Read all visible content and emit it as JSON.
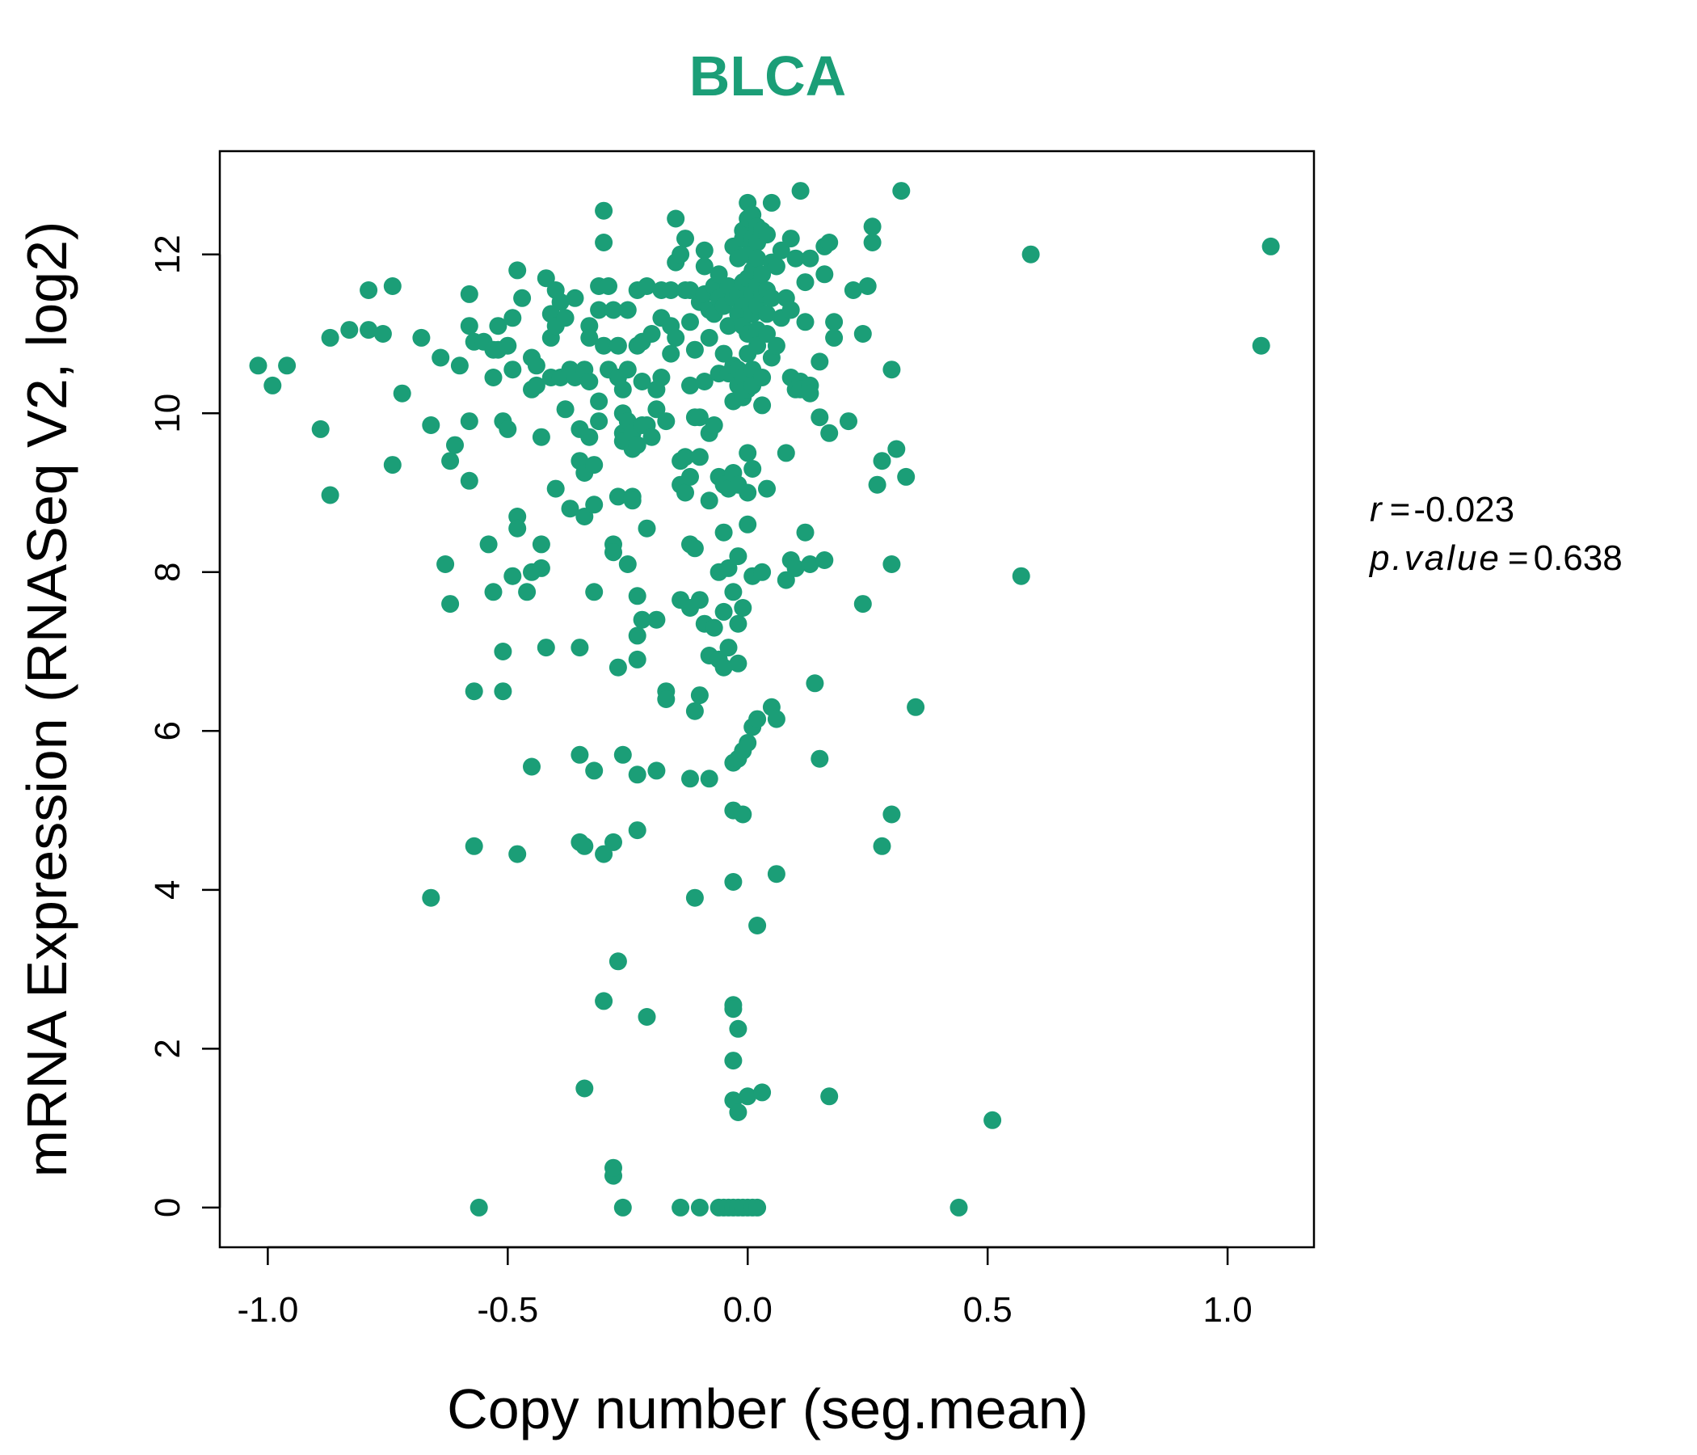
{
  "colors": {
    "accent": "#1B9E77",
    "axis": "#000000",
    "background": "#FFFFFF"
  },
  "chart_data": {
    "type": "scatter",
    "title": "BLCA",
    "xlabel": "Copy number (seg.mean)",
    "ylabel": "mRNA Expression (RNASeq V2, log2)",
    "xlim": [
      -1.1,
      1.18
    ],
    "ylim": [
      -0.5,
      13.3
    ],
    "x_ticks": [
      -1.0,
      -0.5,
      0.0,
      0.5,
      1.0
    ],
    "x_tick_labels": [
      "-1.0",
      "-0.5",
      "0.0",
      "0.5",
      "1.0"
    ],
    "y_ticks": [
      0,
      2,
      4,
      6,
      8,
      10,
      12
    ],
    "y_tick_labels": [
      "0",
      "2",
      "4",
      "6",
      "8",
      "10",
      "12"
    ],
    "grid": false,
    "legend": "none",
    "stats": {
      "r_label": "r",
      "r_value": "-0.023",
      "p_label": "p.value",
      "p_value": "0.638",
      "equals": "="
    },
    "points": [
      [
        -1.02,
        10.6
      ],
      [
        -0.99,
        10.35
      ],
      [
        -0.96,
        10.6
      ],
      [
        -0.89,
        9.8
      ],
      [
        -0.87,
        8.97
      ],
      [
        -0.87,
        10.95
      ],
      [
        -0.83,
        11.05
      ],
      [
        -0.79,
        11.55
      ],
      [
        -0.79,
        11.05
      ],
      [
        -0.76,
        11.0
      ],
      [
        -0.74,
        11.6
      ],
      [
        -0.74,
        9.35
      ],
      [
        -0.72,
        10.25
      ],
      [
        -0.68,
        10.95
      ],
      [
        -0.66,
        9.85
      ],
      [
        -0.66,
        3.9
      ],
      [
        -0.64,
        10.7
      ],
      [
        -0.63,
        8.1
      ],
      [
        -0.62,
        7.6
      ],
      [
        -0.62,
        9.4
      ],
      [
        -0.61,
        9.6
      ],
      [
        -0.6,
        10.6
      ],
      [
        -0.58,
        11.5
      ],
      [
        -0.58,
        11.1
      ],
      [
        -0.58,
        9.9
      ],
      [
        -0.58,
        9.15
      ],
      [
        -0.57,
        10.9
      ],
      [
        -0.57,
        6.5
      ],
      [
        -0.57,
        4.55
      ],
      [
        -0.56,
        0.0
      ],
      [
        -0.55,
        10.9
      ],
      [
        -0.54,
        8.35
      ],
      [
        -0.53,
        10.8
      ],
      [
        -0.53,
        10.45
      ],
      [
        -0.53,
        7.75
      ],
      [
        -0.52,
        11.1
      ],
      [
        -0.52,
        10.8
      ],
      [
        -0.51,
        9.9
      ],
      [
        -0.51,
        7.0
      ],
      [
        -0.51,
        6.5
      ],
      [
        -0.5,
        9.8
      ],
      [
        -0.5,
        10.85
      ],
      [
        -0.49,
        10.55
      ],
      [
        -0.49,
        11.2
      ],
      [
        -0.49,
        7.95
      ],
      [
        -0.48,
        11.8
      ],
      [
        -0.48,
        8.7
      ],
      [
        -0.48,
        8.55
      ],
      [
        -0.48,
        4.45
      ],
      [
        -0.47,
        11.45
      ],
      [
        -0.46,
        7.75
      ],
      [
        -0.45,
        10.7
      ],
      [
        -0.45,
        10.3
      ],
      [
        -0.45,
        8.0
      ],
      [
        -0.45,
        5.55
      ],
      [
        -0.44,
        10.6
      ],
      [
        -0.44,
        10.35
      ],
      [
        -0.43,
        9.7
      ],
      [
        -0.43,
        8.35
      ],
      [
        -0.43,
        8.05
      ],
      [
        -0.42,
        11.7
      ],
      [
        -0.42,
        7.05
      ],
      [
        -0.41,
        11.25
      ],
      [
        -0.41,
        10.95
      ],
      [
        -0.41,
        10.45
      ],
      [
        -0.4,
        11.55
      ],
      [
        -0.4,
        11.1
      ],
      [
        -0.4,
        9.05
      ],
      [
        -0.39,
        11.4
      ],
      [
        -0.39,
        10.45
      ],
      [
        -0.38,
        11.2
      ],
      [
        -0.38,
        10.05
      ],
      [
        -0.37,
        10.55
      ],
      [
        -0.37,
        8.8
      ],
      [
        -0.36,
        10.45
      ],
      [
        -0.36,
        11.45
      ],
      [
        -0.35,
        9.8
      ],
      [
        -0.35,
        9.4
      ],
      [
        -0.35,
        7.05
      ],
      [
        -0.35,
        5.7
      ],
      [
        -0.35,
        4.6
      ],
      [
        -0.34,
        10.55
      ],
      [
        -0.34,
        9.25
      ],
      [
        -0.34,
        8.7
      ],
      [
        -0.34,
        4.55
      ],
      [
        -0.34,
        1.5
      ],
      [
        -0.33,
        11.1
      ],
      [
        -0.33,
        10.95
      ],
      [
        -0.33,
        10.4
      ],
      [
        -0.33,
        9.7
      ],
      [
        -0.32,
        9.35
      ],
      [
        -0.32,
        8.85
      ],
      [
        -0.32,
        7.75
      ],
      [
        -0.32,
        5.5
      ],
      [
        -0.31,
        11.6
      ],
      [
        -0.31,
        11.3
      ],
      [
        -0.31,
        10.15
      ],
      [
        -0.31,
        9.9
      ],
      [
        -0.3,
        12.55
      ],
      [
        -0.3,
        12.15
      ],
      [
        -0.3,
        10.85
      ],
      [
        -0.3,
        4.45
      ],
      [
        -0.3,
        2.6
      ],
      [
        -0.29,
        11.6
      ],
      [
        -0.29,
        10.55
      ],
      [
        -0.28,
        11.3
      ],
      [
        -0.28,
        8.35
      ],
      [
        -0.28,
        8.25
      ],
      [
        -0.28,
        4.6
      ],
      [
        -0.28,
        0.4
      ],
      [
        -0.28,
        0.5
      ],
      [
        -0.27,
        10.85
      ],
      [
        -0.27,
        10.45
      ],
      [
        -0.27,
        8.95
      ],
      [
        -0.27,
        6.8
      ],
      [
        -0.27,
        3.1
      ],
      [
        -0.26,
        10.3
      ],
      [
        -0.26,
        10.0
      ],
      [
        -0.26,
        9.75
      ],
      [
        -0.26,
        9.65
      ],
      [
        -0.26,
        5.7
      ],
      [
        -0.26,
        0.0
      ],
      [
        -0.25,
        11.3
      ],
      [
        -0.25,
        10.55
      ],
      [
        -0.25,
        9.9
      ],
      [
        -0.25,
        8.1
      ],
      [
        -0.24,
        9.75
      ],
      [
        -0.24,
        9.55
      ],
      [
        -0.24,
        8.95
      ],
      [
        -0.24,
        8.9
      ],
      [
        -0.23,
        11.55
      ],
      [
        -0.23,
        10.85
      ],
      [
        -0.23,
        9.6
      ],
      [
        -0.23,
        7.7
      ],
      [
        -0.23,
        7.2
      ],
      [
        -0.23,
        6.9
      ],
      [
        -0.23,
        5.45
      ],
      [
        -0.23,
        4.75
      ],
      [
        -0.22,
        10.9
      ],
      [
        -0.22,
        10.4
      ],
      [
        -0.22,
        9.85
      ],
      [
        -0.22,
        7.4
      ],
      [
        -0.21,
        11.6
      ],
      [
        -0.21,
        9.85
      ],
      [
        -0.21,
        8.55
      ],
      [
        -0.21,
        2.4
      ],
      [
        -0.2,
        11.0
      ],
      [
        -0.2,
        9.7
      ],
      [
        -0.19,
        10.3
      ],
      [
        -0.19,
        10.05
      ],
      [
        -0.19,
        7.4
      ],
      [
        -0.19,
        5.5
      ],
      [
        -0.18,
        11.55
      ],
      [
        -0.18,
        11.2
      ],
      [
        -0.18,
        10.45
      ],
      [
        -0.17,
        9.9
      ],
      [
        -0.17,
        6.5
      ],
      [
        -0.17,
        6.4
      ],
      [
        -0.16,
        11.55
      ],
      [
        -0.16,
        11.1
      ],
      [
        -0.16,
        10.75
      ],
      [
        -0.15,
        12.45
      ],
      [
        -0.15,
        11.9
      ],
      [
        -0.15,
        10.95
      ],
      [
        -0.14,
        12.0
      ],
      [
        -0.14,
        9.4
      ],
      [
        -0.14,
        9.1
      ],
      [
        -0.14,
        7.65
      ],
      [
        -0.14,
        0.0
      ],
      [
        -0.13,
        12.2
      ],
      [
        -0.13,
        11.55
      ],
      [
        -0.13,
        9.45
      ],
      [
        -0.13,
        9.0
      ],
      [
        -0.12,
        11.55
      ],
      [
        -0.12,
        11.15
      ],
      [
        -0.12,
        10.35
      ],
      [
        -0.12,
        9.2
      ],
      [
        -0.12,
        8.35
      ],
      [
        -0.12,
        7.55
      ],
      [
        -0.12,
        5.4
      ],
      [
        -0.11,
        10.8
      ],
      [
        -0.11,
        9.95
      ],
      [
        -0.11,
        8.3
      ],
      [
        -0.11,
        6.25
      ],
      [
        -0.11,
        3.9
      ],
      [
        -0.1,
        11.4
      ],
      [
        -0.1,
        9.95
      ],
      [
        -0.1,
        9.45
      ],
      [
        -0.1,
        7.65
      ],
      [
        -0.1,
        6.45
      ],
      [
        -0.1,
        0.0
      ],
      [
        -0.09,
        12.05
      ],
      [
        -0.09,
        11.85
      ],
      [
        -0.09,
        11.5
      ],
      [
        -0.09,
        10.4
      ],
      [
        -0.09,
        7.35
      ],
      [
        -0.08,
        11.3
      ],
      [
        -0.08,
        10.95
      ],
      [
        -0.08,
        9.75
      ],
      [
        -0.08,
        8.9
      ],
      [
        -0.08,
        6.95
      ],
      [
        -0.08,
        5.4
      ],
      [
        -0.07,
        11.6
      ],
      [
        -0.07,
        11.25
      ],
      [
        -0.07,
        9.85
      ],
      [
        -0.07,
        7.3
      ],
      [
        -0.06,
        11.75
      ],
      [
        -0.06,
        11.45
      ],
      [
        -0.06,
        10.5
      ],
      [
        -0.06,
        9.2
      ],
      [
        -0.06,
        8.0
      ],
      [
        -0.06,
        6.9
      ],
      [
        -0.06,
        0.0
      ],
      [
        -0.05,
        11.35
      ],
      [
        -0.05,
        10.75
      ],
      [
        -0.05,
        9.1
      ],
      [
        -0.05,
        8.5
      ],
      [
        -0.05,
        7.5
      ],
      [
        -0.05,
        6.8
      ],
      [
        -0.05,
        0.0
      ],
      [
        -0.04,
        11.6
      ],
      [
        -0.04,
        11.1
      ],
      [
        -0.04,
        10.5
      ],
      [
        -0.04,
        9.05
      ],
      [
        -0.04,
        8.05
      ],
      [
        -0.04,
        7.05
      ],
      [
        -0.04,
        0.0
      ],
      [
        -0.03,
        12.1
      ],
      [
        -0.03,
        11.45
      ],
      [
        -0.03,
        10.6
      ],
      [
        -0.03,
        10.15
      ],
      [
        -0.03,
        9.25
      ],
      [
        -0.03,
        7.75
      ],
      [
        -0.03,
        5.6
      ],
      [
        -0.03,
        5.0
      ],
      [
        -0.03,
        4.1
      ],
      [
        -0.03,
        2.55
      ],
      [
        -0.03,
        2.5
      ],
      [
        -0.03,
        1.85
      ],
      [
        -0.03,
        1.35
      ],
      [
        -0.03,
        0.0
      ],
      [
        -0.02,
        11.95
      ],
      [
        -0.02,
        11.5
      ],
      [
        -0.02,
        11.25
      ],
      [
        -0.02,
        10.55
      ],
      [
        -0.02,
        10.35
      ],
      [
        -0.02,
        9.1
      ],
      [
        -0.02,
        8.2
      ],
      [
        -0.02,
        7.35
      ],
      [
        -0.02,
        6.85
      ],
      [
        -0.02,
        5.65
      ],
      [
        -0.02,
        2.25
      ],
      [
        -0.02,
        1.2
      ],
      [
        -0.02,
        0.0
      ],
      [
        -0.01,
        12.3
      ],
      [
        -0.01,
        12.2
      ],
      [
        -0.01,
        11.65
      ],
      [
        -0.01,
        11.35
      ],
      [
        -0.01,
        11.1
      ],
      [
        -0.01,
        10.45
      ],
      [
        -0.01,
        10.2
      ],
      [
        -0.01,
        7.55
      ],
      [
        -0.01,
        5.75
      ],
      [
        -0.01,
        4.95
      ],
      [
        -0.01,
        0.0
      ],
      [
        0.0,
        12.65
      ],
      [
        0.0,
        12.45
      ],
      [
        0.0,
        12.0
      ],
      [
        0.0,
        11.7
      ],
      [
        0.0,
        11.4
      ],
      [
        0.0,
        11.0
      ],
      [
        0.0,
        10.75
      ],
      [
        0.0,
        10.3
      ],
      [
        0.0,
        9.5
      ],
      [
        0.0,
        9.0
      ],
      [
        0.0,
        8.6
      ],
      [
        0.0,
        5.85
      ],
      [
        0.0,
        1.4
      ],
      [
        0.0,
        0.0
      ],
      [
        0.01,
        12.5
      ],
      [
        0.01,
        12.2
      ],
      [
        0.01,
        11.8
      ],
      [
        0.01,
        11.5
      ],
      [
        0.01,
        11.25
      ],
      [
        0.01,
        10.55
      ],
      [
        0.01,
        10.35
      ],
      [
        0.01,
        9.3
      ],
      [
        0.01,
        7.95
      ],
      [
        0.01,
        6.05
      ],
      [
        0.01,
        0.0
      ],
      [
        0.02,
        12.35
      ],
      [
        0.02,
        12.15
      ],
      [
        0.02,
        11.95
      ],
      [
        0.02,
        11.6
      ],
      [
        0.02,
        11.35
      ],
      [
        0.02,
        11.05
      ],
      [
        0.02,
        10.85
      ],
      [
        0.02,
        6.15
      ],
      [
        0.02,
        3.55
      ],
      [
        0.02,
        0.0
      ],
      [
        0.03,
        12.3
      ],
      [
        0.03,
        11.75
      ],
      [
        0.03,
        11.5
      ],
      [
        0.03,
        10.45
      ],
      [
        0.03,
        10.1
      ],
      [
        0.03,
        8.0
      ],
      [
        0.03,
        1.45
      ],
      [
        0.04,
        12.25
      ],
      [
        0.04,
        11.55
      ],
      [
        0.04,
        11.25
      ],
      [
        0.04,
        11.0
      ],
      [
        0.04,
        9.05
      ],
      [
        0.05,
        12.65
      ],
      [
        0.05,
        11.9
      ],
      [
        0.05,
        11.45
      ],
      [
        0.05,
        10.7
      ],
      [
        0.05,
        6.3
      ],
      [
        0.06,
        11.85
      ],
      [
        0.06,
        10.85
      ],
      [
        0.06,
        6.15
      ],
      [
        0.06,
        4.2
      ],
      [
        0.07,
        12.05
      ],
      [
        0.07,
        11.2
      ],
      [
        0.08,
        11.45
      ],
      [
        0.08,
        9.5
      ],
      [
        0.08,
        7.9
      ],
      [
        0.09,
        12.2
      ],
      [
        0.09,
        11.3
      ],
      [
        0.09,
        10.45
      ],
      [
        0.09,
        8.15
      ],
      [
        0.1,
        11.95
      ],
      [
        0.1,
        10.3
      ],
      [
        0.1,
        8.05
      ],
      [
        0.11,
        12.8
      ],
      [
        0.11,
        10.4
      ],
      [
        0.11,
        10.3
      ],
      [
        0.12,
        11.65
      ],
      [
        0.12,
        11.15
      ],
      [
        0.12,
        8.5
      ],
      [
        0.13,
        11.95
      ],
      [
        0.13,
        10.35
      ],
      [
        0.13,
        10.25
      ],
      [
        0.13,
        8.1
      ],
      [
        0.14,
        6.6
      ],
      [
        0.15,
        10.65
      ],
      [
        0.15,
        9.95
      ],
      [
        0.16,
        12.1
      ],
      [
        0.16,
        11.75
      ],
      [
        0.16,
        8.15
      ],
      [
        0.17,
        12.15
      ],
      [
        0.17,
        9.75
      ],
      [
        0.17,
        1.4
      ],
      [
        0.18,
        11.15
      ],
      [
        0.18,
        10.95
      ],
      [
        0.15,
        5.65
      ],
      [
        0.21,
        9.9
      ],
      [
        0.22,
        11.55
      ],
      [
        0.24,
        11.0
      ],
      [
        0.24,
        7.6
      ],
      [
        0.25,
        11.6
      ],
      [
        0.26,
        12.35
      ],
      [
        0.26,
        12.15
      ],
      [
        0.27,
        9.1
      ],
      [
        0.28,
        9.4
      ],
      [
        0.28,
        4.55
      ],
      [
        0.3,
        10.55
      ],
      [
        0.3,
        8.1
      ],
      [
        0.3,
        4.95
      ],
      [
        0.31,
        9.55
      ],
      [
        0.32,
        12.8
      ],
      [
        0.33,
        9.2
      ],
      [
        0.35,
        6.3
      ],
      [
        0.44,
        0.0
      ],
      [
        0.51,
        1.1
      ],
      [
        0.57,
        7.95
      ],
      [
        0.59,
        12.0
      ],
      [
        1.07,
        10.85
      ],
      [
        1.09,
        12.1
      ]
    ]
  }
}
